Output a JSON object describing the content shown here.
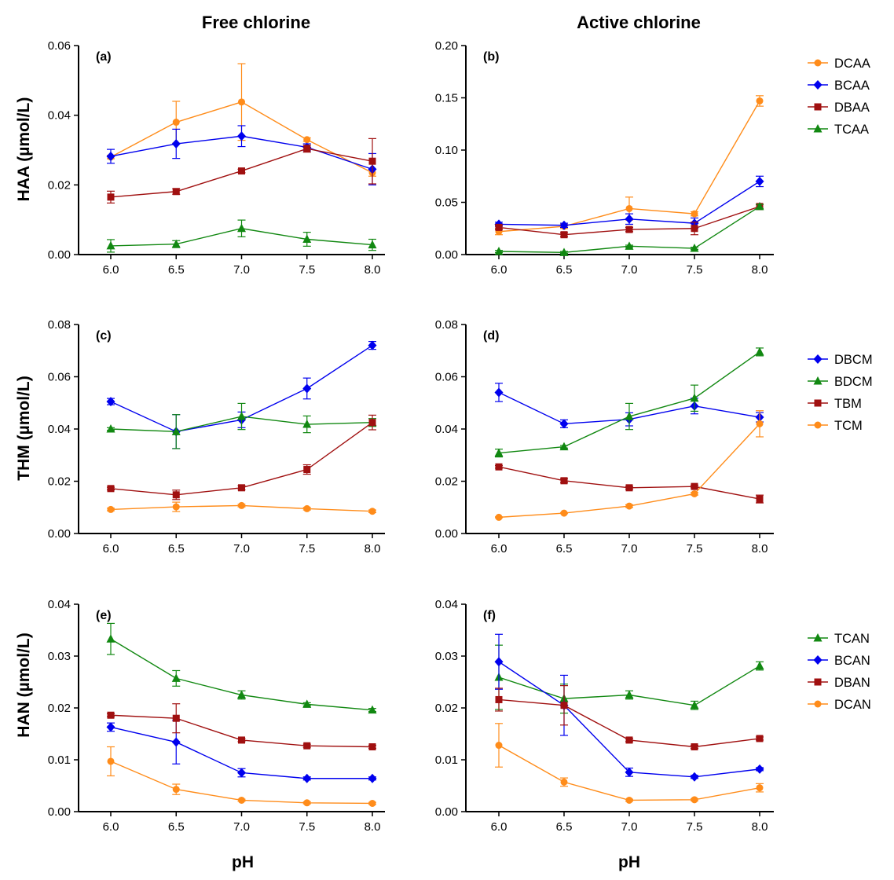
{
  "column_titles": [
    "Free chlorine",
    "Active chlorine"
  ],
  "row_labels": [
    "HAA (µmol/L)",
    "THM (µmol/L)",
    "HAN (µmol/L)"
  ],
  "x_label": "pH",
  "colors": {
    "orange": "#FF8C1A",
    "blue": "#0000EE",
    "red": "#A01010",
    "green": "#118811"
  },
  "chart_data": [
    {
      "type": "line",
      "panel": "(a)",
      "x": [
        6.0,
        6.5,
        7.0,
        7.5,
        8.0
      ],
      "x_ticks": [
        "6.0",
        "6.5",
        "7.0",
        "7.5",
        "8.0"
      ],
      "ylim": [
        0,
        0.06
      ],
      "y_ticks": [
        "0.00",
        "0.02",
        "0.04",
        "0.06"
      ],
      "series": [
        {
          "name": "DCAA",
          "color": "orange",
          "marker": "circle",
          "values": [
            0.028,
            0.038,
            0.0438,
            0.033,
            0.0235
          ],
          "errors": [
            0.0005,
            0.006,
            0.011,
            0.0005,
            0.001
          ]
        },
        {
          "name": "BCAA",
          "color": "blue",
          "marker": "diamond",
          "values": [
            0.0282,
            0.0318,
            0.034,
            0.0308,
            0.0245
          ],
          "errors": [
            0.002,
            0.0042,
            0.003,
            0.001,
            0.0045
          ]
        },
        {
          "name": "DBAA",
          "color": "red",
          "marker": "square",
          "values": [
            0.0165,
            0.0181,
            0.024,
            0.0304,
            0.0268
          ],
          "errors": [
            0.0017,
            0.0008,
            0.0005,
            0.001,
            0.0065
          ]
        },
        {
          "name": "TCAA",
          "color": "green",
          "marker": "triangle",
          "values": [
            0.0025,
            0.003,
            0.0075,
            0.0044,
            0.0028
          ],
          "errors": [
            0.0018,
            0.001,
            0.0024,
            0.002,
            0.0016
          ]
        }
      ]
    },
    {
      "type": "line",
      "panel": "(b)",
      "x": [
        6.0,
        6.5,
        7.0,
        7.5,
        8.0
      ],
      "x_ticks": [
        "6.0",
        "6.5",
        "7.0",
        "7.5",
        "8.0"
      ],
      "ylim": [
        0,
        0.2
      ],
      "y_ticks": [
        "0.00",
        "0.05",
        "0.10",
        "0.15",
        "0.20"
      ],
      "series": [
        {
          "name": "DCAA",
          "color": "orange",
          "marker": "circle",
          "values": [
            0.022,
            0.027,
            0.044,
            0.039,
            0.147
          ],
          "errors": [
            0.003,
            0.002,
            0.011,
            0.002,
            0.005
          ]
        },
        {
          "name": "BCAA",
          "color": "blue",
          "marker": "diamond",
          "values": [
            0.029,
            0.028,
            0.034,
            0.03,
            0.07
          ],
          "errors": [
            0.002,
            0.002,
            0.005,
            0.005,
            0.005
          ]
        },
        {
          "name": "DBAA",
          "color": "red",
          "marker": "square",
          "values": [
            0.026,
            0.019,
            0.024,
            0.025,
            0.046
          ],
          "errors": [
            0.002,
            0.002,
            0.002,
            0.006,
            0.002
          ]
        },
        {
          "name": "TCAA",
          "color": "green",
          "marker": "triangle",
          "values": [
            0.003,
            0.002,
            0.008,
            0.006,
            0.046
          ],
          "errors": [
            0.001,
            0.001,
            0.001,
            0.001,
            0.002
          ]
        }
      ]
    },
    {
      "type": "line",
      "panel": "(c)",
      "x": [
        6.0,
        6.5,
        7.0,
        7.5,
        8.0
      ],
      "x_ticks": [
        "6.0",
        "6.5",
        "7.0",
        "7.5",
        "8.0"
      ],
      "ylim": [
        0,
        0.08
      ],
      "y_ticks": [
        "0.00",
        "0.02",
        "0.04",
        "0.06",
        "0.08"
      ],
      "series": [
        {
          "name": "DBCM",
          "color": "blue",
          "marker": "diamond",
          "values": [
            0.0505,
            0.039,
            0.0435,
            0.0555,
            0.072
          ],
          "errors": [
            0.0012,
            0.0065,
            0.003,
            0.004,
            0.0015
          ]
        },
        {
          "name": "BDCM",
          "color": "green",
          "marker": "triangle",
          "values": [
            0.04,
            0.039,
            0.0448,
            0.0418,
            0.0425
          ],
          "errors": [
            0.0005,
            0.0065,
            0.005,
            0.0032,
            0.0015
          ]
        },
        {
          "name": "TBM",
          "color": "red",
          "marker": "square",
          "values": [
            0.0172,
            0.0148,
            0.0175,
            0.0245,
            0.0425
          ],
          "errors": [
            0.0005,
            0.0018,
            0.0008,
            0.0018,
            0.0028
          ]
        },
        {
          "name": "TCM",
          "color": "orange",
          "marker": "circle",
          "values": [
            0.0092,
            0.0102,
            0.0107,
            0.0095,
            0.0085
          ],
          "errors": [
            0.0005,
            0.0018,
            0.0005,
            0.0005,
            0.0005
          ]
        }
      ]
    },
    {
      "type": "line",
      "panel": "(d)",
      "x": [
        6.0,
        6.5,
        7.0,
        7.5,
        8.0
      ],
      "x_ticks": [
        "6.0",
        "6.5",
        "7.0",
        "7.5",
        "8.0"
      ],
      "ylim": [
        0,
        0.08
      ],
      "y_ticks": [
        "0.00",
        "0.02",
        "0.04",
        "0.06",
        "0.08"
      ],
      "series": [
        {
          "name": "DBCM",
          "color": "blue",
          "marker": "diamond",
          "values": [
            0.054,
            0.042,
            0.0437,
            0.0488,
            0.0445
          ],
          "errors": [
            0.0035,
            0.0015,
            0.0025,
            0.003,
            0.0018
          ]
        },
        {
          "name": "BDCM",
          "color": "green",
          "marker": "triangle",
          "values": [
            0.0308,
            0.0332,
            0.0448,
            0.0518,
            0.0695
          ],
          "errors": [
            0.0015,
            0.0005,
            0.005,
            0.005,
            0.0015
          ]
        },
        {
          "name": "TBM",
          "color": "red",
          "marker": "square",
          "values": [
            0.0255,
            0.0202,
            0.0175,
            0.018,
            0.0132
          ],
          "errors": [
            0.0005,
            0.0008,
            0.0005,
            0.0005,
            0.0015
          ]
        },
        {
          "name": "TCM",
          "color": "orange",
          "marker": "circle",
          "values": [
            0.0062,
            0.0078,
            0.0105,
            0.0152,
            0.042
          ],
          "errors": [
            0.0002,
            0.0002,
            0.0005,
            0.0005,
            0.005
          ]
        }
      ]
    },
    {
      "type": "line",
      "panel": "(e)",
      "x": [
        6.0,
        6.5,
        7.0,
        7.5,
        8.0
      ],
      "x_ticks": [
        "6.0",
        "6.5",
        "7.0",
        "7.5",
        "8.0"
      ],
      "ylim": [
        0,
        0.04
      ],
      "y_ticks": [
        "0.00",
        "0.01",
        "0.02",
        "0.03",
        "0.04"
      ],
      "series": [
        {
          "name": "TCAN",
          "color": "green",
          "marker": "triangle",
          "values": [
            0.0333,
            0.0257,
            0.0225,
            0.0207,
            0.0196
          ],
          "errors": [
            0.003,
            0.0015,
            0.0008,
            0.0003,
            0.0003
          ]
        },
        {
          "name": "BCAN",
          "color": "blue",
          "marker": "diamond",
          "values": [
            0.0163,
            0.0134,
            0.0075,
            0.0064,
            0.0064
          ],
          "errors": [
            0.0008,
            0.0042,
            0.0008,
            0.0003,
            0.0003
          ]
        },
        {
          "name": "DBAN",
          "color": "red",
          "marker": "square",
          "values": [
            0.0186,
            0.018,
            0.0138,
            0.0127,
            0.0125
          ],
          "errors": [
            0.0003,
            0.0028,
            0.0003,
            0.0003,
            0.0003
          ]
        },
        {
          "name": "DCAN",
          "color": "orange",
          "marker": "circle",
          "values": [
            0.0097,
            0.0043,
            0.0022,
            0.0017,
            0.0016
          ],
          "errors": [
            0.0028,
            0.001,
            0.0002,
            0.0002,
            0.0002
          ]
        }
      ]
    },
    {
      "type": "line",
      "panel": "(f)",
      "x": [
        6.0,
        6.5,
        7.0,
        7.5,
        8.0
      ],
      "x_ticks": [
        "6.0",
        "6.5",
        "7.0",
        "7.5",
        "8.0"
      ],
      "ylim": [
        0,
        0.04
      ],
      "y_ticks": [
        "0.00",
        "0.01",
        "0.02",
        "0.03",
        "0.04"
      ],
      "series": [
        {
          "name": "TCAN",
          "color": "green",
          "marker": "triangle",
          "values": [
            0.0259,
            0.0218,
            0.0225,
            0.0205,
            0.0281
          ],
          "errors": [
            0.0062,
            0.0028,
            0.0008,
            0.0008,
            0.0008
          ]
        },
        {
          "name": "BCAN",
          "color": "blue",
          "marker": "diamond",
          "values": [
            0.0289,
            0.0205,
            0.0076,
            0.0067,
            0.0082
          ],
          "errors": [
            0.0053,
            0.0058,
            0.0008,
            0.0003,
            0.0003
          ]
        },
        {
          "name": "DBAN",
          "color": "red",
          "marker": "square",
          "values": [
            0.0216,
            0.0205,
            0.0138,
            0.0125,
            0.0141
          ],
          "errors": [
            0.0022,
            0.0038,
            0.0003,
            0.0003,
            0.0003
          ]
        },
        {
          "name": "DCAN",
          "color": "orange",
          "marker": "circle",
          "values": [
            0.0128,
            0.0057,
            0.0022,
            0.0023,
            0.0046
          ],
          "errors": [
            0.0042,
            0.0008,
            0.0002,
            0.0002,
            0.0008
          ]
        }
      ]
    }
  ],
  "legends": [
    [
      "DCAA",
      "BCAA",
      "DBAA",
      "TCAA"
    ],
    [
      "DBCM",
      "BDCM",
      "TBM",
      "TCM"
    ],
    [
      "TCAN",
      "BCAN",
      "DBAN",
      "DCAN"
    ]
  ]
}
